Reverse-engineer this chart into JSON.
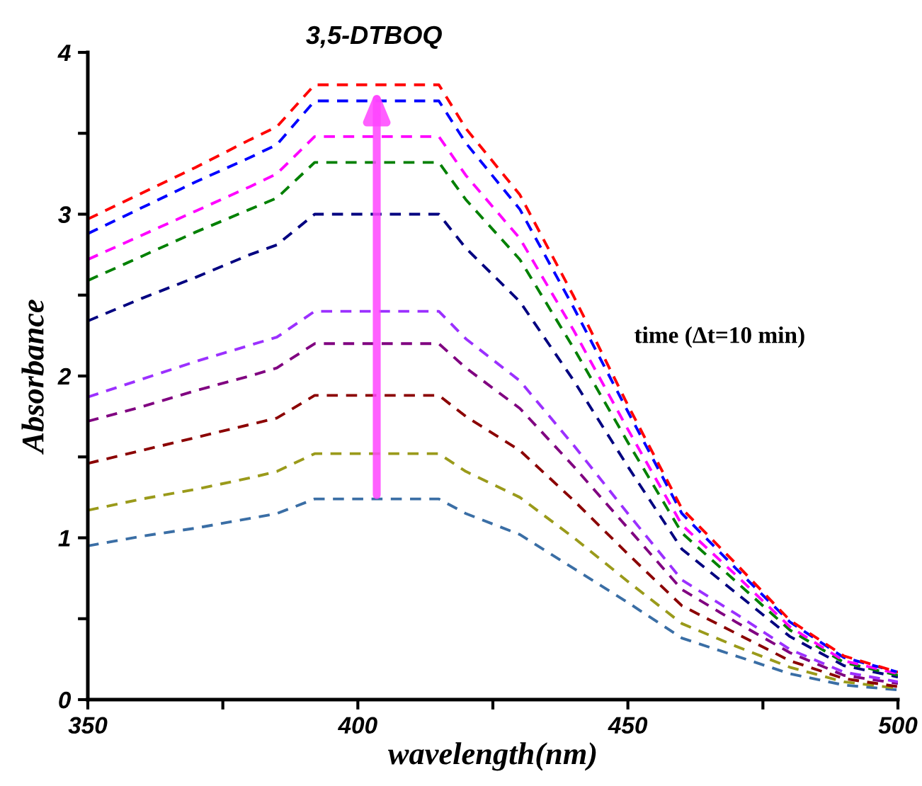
{
  "chart_data": {
    "type": "line",
    "title": "3,5-DTBOQ",
    "xlabel": "wavelength(nm)",
    "ylabel": "Absorbance",
    "annotations": [
      "time (Δt=10 min)"
    ],
    "x": [
      350,
      360,
      370,
      380,
      385,
      392,
      400,
      410,
      415,
      420,
      430,
      440,
      450,
      460,
      470,
      480,
      490,
      500
    ],
    "series": [
      {
        "color": "#3a6ea5",
        "values": [
          0.95,
          1.01,
          1.06,
          1.12,
          1.15,
          1.24,
          1.24,
          1.24,
          1.24,
          1.15,
          1.02,
          0.81,
          0.6,
          0.38,
          0.27,
          0.16,
          0.09,
          0.06
        ]
      },
      {
        "color": "#9a9a1a",
        "values": [
          1.17,
          1.24,
          1.3,
          1.37,
          1.41,
          1.52,
          1.52,
          1.52,
          1.52,
          1.41,
          1.25,
          1.0,
          0.73,
          0.47,
          0.33,
          0.2,
          0.11,
          0.07
        ]
      },
      {
        "color": "#8b0000",
        "values": [
          1.46,
          1.54,
          1.62,
          1.7,
          1.74,
          1.88,
          1.88,
          1.88,
          1.88,
          1.75,
          1.54,
          1.23,
          0.9,
          0.58,
          0.41,
          0.24,
          0.13,
          0.08
        ]
      },
      {
        "color": "#800080",
        "values": [
          1.72,
          1.81,
          1.91,
          2.0,
          2.05,
          2.2,
          2.2,
          2.2,
          2.2,
          2.05,
          1.8,
          1.44,
          1.06,
          0.68,
          0.48,
          0.29,
          0.15,
          0.1
        ]
      },
      {
        "color": "#9b30ff",
        "values": [
          1.87,
          1.98,
          2.09,
          2.19,
          2.24,
          2.4,
          2.4,
          2.4,
          2.4,
          2.23,
          1.97,
          1.57,
          1.15,
          0.74,
          0.53,
          0.31,
          0.17,
          0.11
        ]
      },
      {
        "color": "#000080",
        "values": [
          2.34,
          2.48,
          2.61,
          2.75,
          2.81,
          3.0,
          3.0,
          3.0,
          3.0,
          2.79,
          2.46,
          1.97,
          1.44,
          0.93,
          0.66,
          0.39,
          0.21,
          0.14
        ]
      },
      {
        "color": "#008000",
        "values": [
          2.59,
          2.74,
          2.89,
          3.03,
          3.1,
          3.32,
          3.32,
          3.32,
          3.32,
          3.09,
          2.72,
          2.17,
          1.59,
          1.03,
          0.73,
          0.43,
          0.23,
          0.15
        ]
      },
      {
        "color": "#ff00ff",
        "values": [
          2.72,
          2.87,
          3.02,
          3.17,
          3.25,
          3.48,
          3.48,
          3.48,
          3.48,
          3.24,
          2.85,
          2.28,
          1.67,
          1.08,
          0.77,
          0.45,
          0.24,
          0.16
        ]
      },
      {
        "color": "#0000ff",
        "values": [
          2.88,
          3.04,
          3.2,
          3.35,
          3.43,
          3.7,
          3.7,
          3.7,
          3.7,
          3.44,
          3.03,
          2.42,
          1.78,
          1.15,
          0.81,
          0.48,
          0.26,
          0.17
        ]
      },
      {
        "color": "#ff0000",
        "values": [
          2.97,
          3.13,
          3.29,
          3.46,
          3.54,
          3.8,
          3.8,
          3.8,
          3.8,
          3.53,
          3.12,
          2.49,
          1.82,
          1.18,
          0.84,
          0.49,
          0.27,
          0.17
        ]
      }
    ],
    "xlim": [
      350,
      500
    ],
    "ylim": [
      0,
      4
    ],
    "xticks": [
      350,
      {
        "value": 375,
        "label": null
      },
      400,
      {
        "value": 425,
        "label": null
      },
      450,
      {
        "value": 475,
        "label": null
      },
      500
    ],
    "yticks": [
      0,
      {
        "value": 0.5,
        "label": null
      },
      1,
      {
        "value": 1.5,
        "label": null
      },
      2,
      {
        "value": 2.5,
        "label": null
      },
      3,
      {
        "value": 3.5,
        "label": null
      },
      4
    ],
    "line_style": "dashed",
    "grid": false,
    "legend": false
  }
}
